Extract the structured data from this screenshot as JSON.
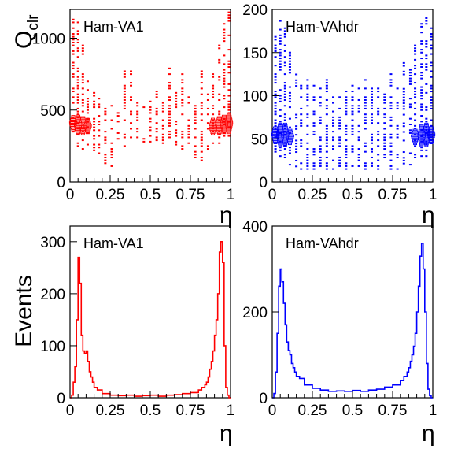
{
  "chart_data": [
    {
      "type": "scatter",
      "label": "Ham-VA1",
      "ylabel": "Q_clr",
      "xlabel": "η",
      "xlim": [
        0,
        1
      ],
      "ylim": [
        0,
        1200
      ],
      "xticks": [
        "0",
        "0.25",
        "0.5",
        "0.75",
        "1"
      ],
      "yticks": [
        "0",
        "500",
        "1000"
      ],
      "ytick_values": [
        0,
        500,
        1000
      ],
      "color": "#ff0000",
      "columns": [
        {
          "x": 0.02,
          "ymin": 330,
          "ymax": 1180,
          "core": [
            360,
            460
          ]
        },
        {
          "x": 0.05,
          "ymin": 250,
          "ymax": 1150,
          "core": [
            330,
            470
          ]
        },
        {
          "x": 0.08,
          "ymin": 230,
          "ymax": 1000,
          "core": [
            330,
            460
          ]
        },
        {
          "x": 0.11,
          "ymin": 240,
          "ymax": 700,
          "core": [
            340,
            440
          ]
        },
        {
          "x": 0.15,
          "ymin": 220,
          "ymax": 650
        },
        {
          "x": 0.18,
          "ymin": 200,
          "ymax": 580
        },
        {
          "x": 0.22,
          "ymin": 130,
          "ymax": 520
        },
        {
          "x": 0.26,
          "ymin": 110,
          "ymax": 560
        },
        {
          "x": 0.3,
          "ymin": 280,
          "ymax": 480
        },
        {
          "x": 0.34,
          "ymin": 250,
          "ymax": 780
        },
        {
          "x": 0.38,
          "ymin": 290,
          "ymax": 780
        },
        {
          "x": 0.42,
          "ymin": 270,
          "ymax": 560
        },
        {
          "x": 0.46,
          "ymin": 280,
          "ymax": 540
        },
        {
          "x": 0.5,
          "ymin": 280,
          "ymax": 620
        },
        {
          "x": 0.54,
          "ymin": 270,
          "ymax": 640
        },
        {
          "x": 0.58,
          "ymin": 270,
          "ymax": 560
        },
        {
          "x": 0.62,
          "ymin": 250,
          "ymax": 800
        },
        {
          "x": 0.66,
          "ymin": 260,
          "ymax": 650
        },
        {
          "x": 0.7,
          "ymin": 230,
          "ymax": 750
        },
        {
          "x": 0.74,
          "ymin": 250,
          "ymax": 600
        },
        {
          "x": 0.78,
          "ymin": 150,
          "ymax": 560
        },
        {
          "x": 0.82,
          "ymin": 130,
          "ymax": 800
        },
        {
          "x": 0.86,
          "ymin": 230,
          "ymax": 700
        },
        {
          "x": 0.89,
          "ymin": 270,
          "ymax": 780,
          "core": [
            330,
            440
          ]
        },
        {
          "x": 0.93,
          "ymin": 250,
          "ymax": 980,
          "core": [
            330,
            460
          ]
        },
        {
          "x": 0.96,
          "ymin": 280,
          "ymax": 1100,
          "core": [
            340,
            470
          ]
        },
        {
          "x": 0.99,
          "ymin": 300,
          "ymax": 1180,
          "core": [
            340,
            480
          ]
        }
      ]
    },
    {
      "type": "scatter",
      "label": "Ham-VAhdr",
      "xlabel": "η",
      "xlim": [
        0,
        1
      ],
      "ylim": [
        0,
        200
      ],
      "xticks": [
        "0",
        "0.25",
        "0.5",
        "0.75",
        "1"
      ],
      "yticks": [
        "0",
        "50",
        "100",
        "150",
        "200"
      ],
      "ytick_values": [
        0,
        50,
        100,
        150,
        200
      ],
      "color": "#0000ff",
      "columns": [
        {
          "x": 0.02,
          "ymin": 35,
          "ymax": 170,
          "core": [
            45,
            65
          ]
        },
        {
          "x": 0.05,
          "ymin": 30,
          "ymax": 190,
          "core": [
            42,
            68
          ]
        },
        {
          "x": 0.08,
          "ymin": 25,
          "ymax": 180,
          "core": [
            42,
            68
          ]
        },
        {
          "x": 0.11,
          "ymin": 20,
          "ymax": 150,
          "core": [
            44,
            62
          ]
        },
        {
          "x": 0.15,
          "ymin": 18,
          "ymax": 130
        },
        {
          "x": 0.18,
          "ymin": 15,
          "ymax": 120
        },
        {
          "x": 0.22,
          "ymin": 15,
          "ymax": 130
        },
        {
          "x": 0.26,
          "ymin": 15,
          "ymax": 115
        },
        {
          "x": 0.3,
          "ymin": 15,
          "ymax": 110
        },
        {
          "x": 0.34,
          "ymin": 15,
          "ymax": 120
        },
        {
          "x": 0.38,
          "ymin": 15,
          "ymax": 105
        },
        {
          "x": 0.42,
          "ymin": 15,
          "ymax": 110
        },
        {
          "x": 0.46,
          "ymin": 15,
          "ymax": 105
        },
        {
          "x": 0.5,
          "ymin": 15,
          "ymax": 115
        },
        {
          "x": 0.54,
          "ymin": 15,
          "ymax": 110
        },
        {
          "x": 0.58,
          "ymin": 15,
          "ymax": 120
        },
        {
          "x": 0.62,
          "ymin": 15,
          "ymax": 110
        },
        {
          "x": 0.66,
          "ymin": 15,
          "ymax": 115
        },
        {
          "x": 0.7,
          "ymin": 15,
          "ymax": 110
        },
        {
          "x": 0.74,
          "ymin": 15,
          "ymax": 130
        },
        {
          "x": 0.78,
          "ymin": 15,
          "ymax": 115
        },
        {
          "x": 0.82,
          "ymin": 18,
          "ymax": 140
        },
        {
          "x": 0.86,
          "ymin": 20,
          "ymax": 130
        },
        {
          "x": 0.89,
          "ymin": 25,
          "ymax": 160,
          "core": [
            44,
            62
          ]
        },
        {
          "x": 0.93,
          "ymin": 30,
          "ymax": 185,
          "core": [
            42,
            66
          ]
        },
        {
          "x": 0.96,
          "ymin": 30,
          "ymax": 195,
          "core": [
            42,
            68
          ]
        },
        {
          "x": 0.99,
          "ymin": 35,
          "ymax": 180,
          "core": [
            45,
            65
          ]
        }
      ]
    },
    {
      "type": "line",
      "label": "Ham-VA1",
      "ylabel": "Events",
      "xlabel": "η",
      "xlim": [
        0,
        1
      ],
      "ylim": [
        0,
        330
      ],
      "xticks": [
        "0",
        "0.25",
        "0.5",
        "0.75",
        "1"
      ],
      "yticks": [
        "0",
        "100",
        "200",
        "300"
      ],
      "ytick_values": [
        0,
        100,
        200,
        300
      ],
      "color": "#ff0000",
      "x": [
        0.0,
        0.01,
        0.02,
        0.03,
        0.04,
        0.05,
        0.06,
        0.07,
        0.08,
        0.09,
        0.1,
        0.11,
        0.12,
        0.13,
        0.14,
        0.15,
        0.17,
        0.2,
        0.25,
        0.3,
        0.35,
        0.4,
        0.45,
        0.5,
        0.55,
        0.6,
        0.65,
        0.7,
        0.75,
        0.8,
        0.82,
        0.84,
        0.85,
        0.86,
        0.87,
        0.88,
        0.89,
        0.9,
        0.91,
        0.92,
        0.93,
        0.94,
        0.95,
        0.96,
        0.97,
        0.98,
        0.99
      ],
      "y": [
        0,
        5,
        30,
        60,
        150,
        270,
        220,
        120,
        90,
        85,
        90,
        70,
        50,
        40,
        30,
        20,
        15,
        8,
        5,
        4,
        5,
        3,
        4,
        5,
        3,
        5,
        6,
        8,
        10,
        15,
        20,
        25,
        30,
        40,
        55,
        70,
        90,
        120,
        150,
        200,
        280,
        300,
        260,
        100,
        20,
        5,
        0
      ]
    },
    {
      "type": "line",
      "label": "Ham-VAhdr",
      "xlabel": "η",
      "xlim": [
        0,
        1
      ],
      "ylim": [
        0,
        400
      ],
      "xticks": [
        "0",
        "0.25",
        "0.5",
        "0.75",
        "1"
      ],
      "yticks": [
        "0",
        "200",
        "400"
      ],
      "ytick_values": [
        0,
        200,
        400
      ],
      "color": "#0000ff",
      "x": [
        0.0,
        0.01,
        0.02,
        0.03,
        0.04,
        0.05,
        0.06,
        0.07,
        0.08,
        0.09,
        0.1,
        0.11,
        0.12,
        0.13,
        0.14,
        0.15,
        0.17,
        0.2,
        0.25,
        0.3,
        0.35,
        0.4,
        0.45,
        0.5,
        0.55,
        0.6,
        0.65,
        0.7,
        0.75,
        0.8,
        0.82,
        0.84,
        0.85,
        0.86,
        0.87,
        0.88,
        0.89,
        0.9,
        0.91,
        0.92,
        0.93,
        0.94,
        0.95,
        0.96,
        0.97,
        0.98,
        0.99
      ],
      "y": [
        0,
        10,
        60,
        150,
        260,
        300,
        270,
        220,
        170,
        130,
        110,
        100,
        80,
        70,
        60,
        50,
        45,
        30,
        22,
        18,
        15,
        16,
        15,
        17,
        15,
        18,
        20,
        25,
        30,
        40,
        50,
        60,
        70,
        85,
        100,
        120,
        150,
        200,
        260,
        330,
        360,
        300,
        200,
        80,
        20,
        5,
        0
      ]
    }
  ],
  "labels": {
    "q_main": "Q",
    "q_sub": "clr",
    "events": "Events",
    "eta": "η"
  }
}
